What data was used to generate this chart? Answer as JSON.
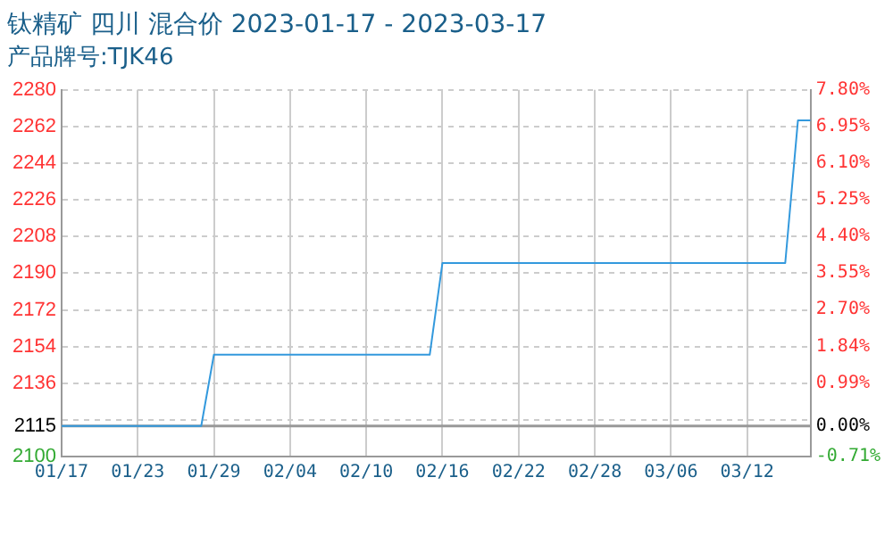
{
  "chart_data": {
    "type": "line",
    "title": "钛精矿 四川 混合价 2023-01-17 - 2023-03-17",
    "subtitle": "产品牌号:TJK46",
    "x": [
      "2023-01-17",
      "2023-01-28",
      "2023-01-29",
      "2023-02-15",
      "2023-02-16",
      "2023-03-15",
      "2023-03-16",
      "2023-03-17"
    ],
    "series": [
      {
        "color": "#3399dd",
        "values": [
          2115,
          2115,
          2150,
          2150,
          2195,
          2195,
          2265,
          2265
        ]
      }
    ],
    "xlim": [
      "2023-01-17",
      "2023-03-17"
    ],
    "xticks": [
      {
        "value": "2023-01-17",
        "label": "01/17"
      },
      {
        "value": "2023-01-23",
        "label": "01/23"
      },
      {
        "value": "2023-01-29",
        "label": "01/29"
      },
      {
        "value": "2023-02-04",
        "label": "02/04"
      },
      {
        "value": "2023-02-10",
        "label": "02/10"
      },
      {
        "value": "2023-02-16",
        "label": "02/16"
      },
      {
        "value": "2023-02-22",
        "label": "02/22"
      },
      {
        "value": "2023-02-28",
        "label": "02/28"
      },
      {
        "value": "2023-03-06",
        "label": "03/06"
      },
      {
        "value": "2023-03-12",
        "label": "03/12"
      }
    ],
    "ylim": [
      2100,
      2280
    ],
    "yticks": [
      2100,
      2115,
      {
        "value": 2118,
        "label": null
      },
      2136,
      2154,
      2172,
      2190,
      2208,
      2226,
      2244,
      2262,
      2280
    ],
    "y2lim": [
      -0.71,
      7.8
    ],
    "y2ticks": [
      {
        "value": -0.71,
        "label": "-0.71%"
      },
      {
        "value": 0,
        "label": "0.00%"
      },
      {
        "value": 0.99,
        "label": "0.99%"
      },
      {
        "value": 1.84,
        "label": "1.84%"
      },
      {
        "value": 2.7,
        "label": "2.70%"
      },
      {
        "value": 3.55,
        "label": "3.55%"
      },
      {
        "value": 4.4,
        "label": "4.40%"
      },
      {
        "value": 5.25,
        "label": "5.25%"
      },
      {
        "value": 6.1,
        "label": "6.10%"
      },
      {
        "value": 6.95,
        "label": "6.95%"
      },
      {
        "value": 7.8,
        "label": "7.80%"
      }
    ],
    "ref_lines": [
      {
        "axis": "y",
        "value": 2115,
        "color": "#999999"
      }
    ],
    "grid": true,
    "legend": false,
    "marker": "none",
    "line_style": "solid"
  }
}
